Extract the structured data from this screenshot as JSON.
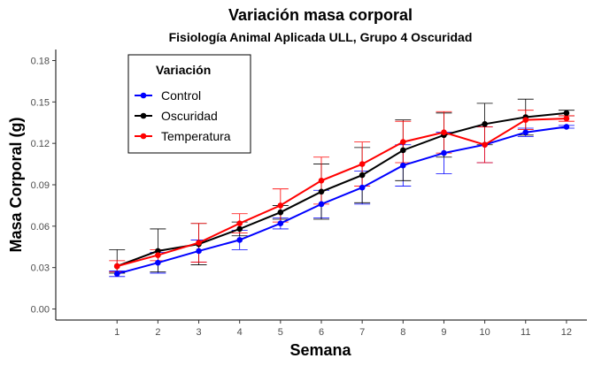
{
  "chart_data": {
    "type": "line",
    "title": "Variación masa corporal",
    "subtitle": "Fisiología Animal Aplicada ULL, Grupo 4 Oscuridad",
    "xlabel": "Semana",
    "ylabel": "Masa Corporal (g)",
    "x": [
      1,
      2,
      3,
      4,
      5,
      6,
      7,
      8,
      9,
      10,
      11,
      12
    ],
    "x_ticks": [
      "1",
      "2",
      "3",
      "4",
      "5",
      "6",
      "7",
      "8",
      "9",
      "10",
      "11",
      "12"
    ],
    "xlim": [
      -0.5,
      12.5
    ],
    "ylim": [
      -0.008,
      0.188
    ],
    "y_ticks": [
      "0.00",
      "0.03",
      "0.06",
      "0.09",
      "0.12",
      "0.15",
      "0.18"
    ],
    "y_tick_values": [
      0,
      0.03,
      0.06,
      0.09,
      0.12,
      0.15,
      0.18
    ],
    "grid": false,
    "legend": {
      "title": "Variación",
      "placement": "top-left"
    },
    "series": [
      {
        "name": "Control",
        "color": "#0000ff",
        "values": [
          0.0255,
          0.0335,
          0.042,
          0.05,
          0.062,
          0.076,
          0.088,
          0.104,
          0.113,
          0.119,
          0.128,
          0.132
        ],
        "err_low": [
          0.0235,
          0.026,
          0.034,
          0.043,
          0.058,
          0.066,
          0.076,
          0.089,
          0.098,
          0.106,
          0.125,
          0.131
        ],
        "err_high": [
          0.0275,
          0.041,
          0.05,
          0.057,
          0.066,
          0.086,
          0.1,
          0.119,
          0.128,
          0.132,
          0.131,
          0.133
        ]
      },
      {
        "name": "Oscuridad",
        "color": "#000000",
        "values": [
          0.031,
          0.042,
          0.047,
          0.058,
          0.07,
          0.085,
          0.097,
          0.115,
          0.126,
          0.134,
          0.139,
          0.142
        ],
        "err_low": [
          0.026,
          0.027,
          0.032,
          0.053,
          0.065,
          0.065,
          0.077,
          0.093,
          0.11,
          0.119,
          0.126,
          0.14
        ],
        "err_high": [
          0.043,
          0.058,
          0.062,
          0.063,
          0.075,
          0.105,
          0.117,
          0.137,
          0.142,
          0.149,
          0.152,
          0.144
        ]
      },
      {
        "name": "Temperatura",
        "color": "#ff0000",
        "values": [
          0.031,
          0.039,
          0.048,
          0.062,
          0.075,
          0.093,
          0.105,
          0.121,
          0.128,
          0.119,
          0.137,
          0.138
        ],
        "err_low": [
          0.027,
          0.035,
          0.034,
          0.055,
          0.063,
          0.076,
          0.089,
          0.106,
          0.113,
          0.106,
          0.13,
          0.136
        ],
        "err_high": [
          0.035,
          0.043,
          0.062,
          0.069,
          0.087,
          0.11,
          0.121,
          0.136,
          0.143,
          0.132,
          0.144,
          0.14
        ]
      }
    ]
  }
}
